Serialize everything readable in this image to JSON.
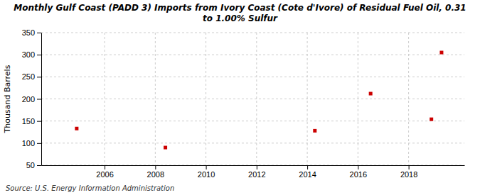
{
  "chart_data": {
    "type": "scatter",
    "title": "Monthly Gulf Coast (PADD 3) Imports from Ivory Coast (Cote d'Ivore) of Residual Fuel Oil, 0.31\nto 1.00% Sulfur",
    "ylabel": "Thousand Barrels",
    "source": "Source: U.S. Energy Information Administration",
    "x": [
      2004.9,
      2008.4,
      2014.3,
      2016.5,
      2018.9,
      2019.3
    ],
    "values": [
      133,
      90,
      128,
      212,
      154,
      305
    ],
    "color": "#cc0000",
    "marker": "square",
    "xlim": [
      2003.5,
      2020.2
    ],
    "ylim": [
      50,
      350
    ],
    "xticks": [
      2006,
      2008,
      2010,
      2012,
      2014,
      2016,
      2018
    ],
    "yticks": [
      50,
      100,
      150,
      200,
      250,
      300,
      350
    ],
    "grid": true
  }
}
